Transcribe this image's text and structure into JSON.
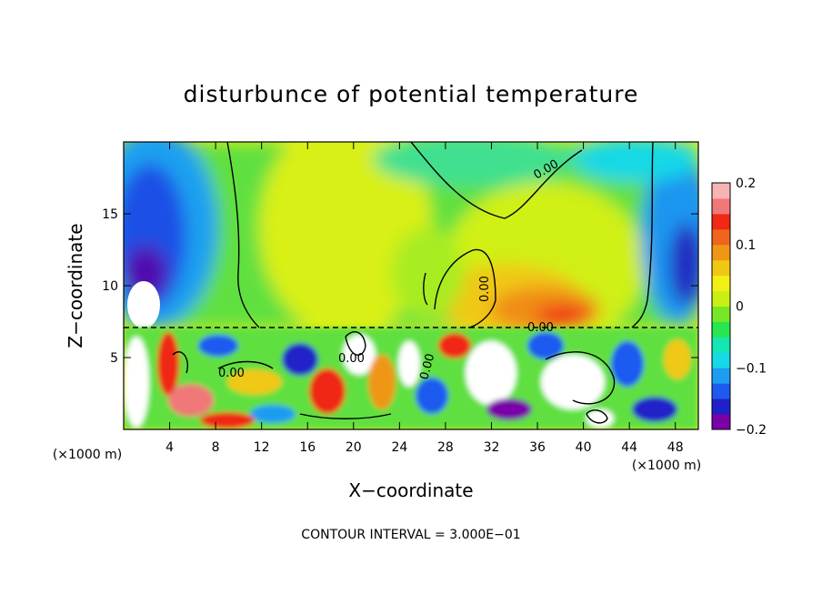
{
  "chart_data": {
    "type": "heatmap",
    "title": "disturbunce of potential temperature",
    "xlabel": "X−coordinate",
    "ylabel": "Z−coordinate",
    "x_unit": "(×1000 m)",
    "y_unit": "(×1000 m)",
    "xlim": [
      0,
      50
    ],
    "ylim": [
      0,
      20
    ],
    "x_ticks": [
      4,
      8,
      12,
      16,
      20,
      24,
      28,
      32,
      36,
      40,
      44,
      48
    ],
    "x_tick_labels": [
      "4",
      "8",
      "12",
      "16",
      "20",
      "24",
      "28",
      "32",
      "36",
      "40",
      "44",
      "48"
    ],
    "y_ticks": [
      5,
      10,
      15
    ],
    "y_tick_labels": [
      "5",
      "10",
      "15"
    ],
    "colorbar": {
      "range": [
        -0.2,
        0.2
      ],
      "tick_values": [
        0.2,
        0.1,
        0,
        -0.1,
        -0.2
      ],
      "tick_labels": [
        "0.2",
        "0.1",
        "0",
        "−0.1",
        "−0.2"
      ],
      "colors": [
        "#7a00a8",
        "#2020c8",
        "#1e5af0",
        "#1e9cf0",
        "#16d8e6",
        "#14e6b4",
        "#28e650",
        "#78e628",
        "#c8f014",
        "#f0f014",
        "#f0c814",
        "#f09614",
        "#f0641e",
        "#f02814",
        "#f07878",
        "#f8b4b4"
      ]
    },
    "contour_labels": [
      "0.00",
      "0.00",
      "0.00",
      "0.00",
      "0.00",
      "0.00"
    ],
    "contour_interval_text": "CONTOUR INTERVAL = 3.000E−01"
  }
}
